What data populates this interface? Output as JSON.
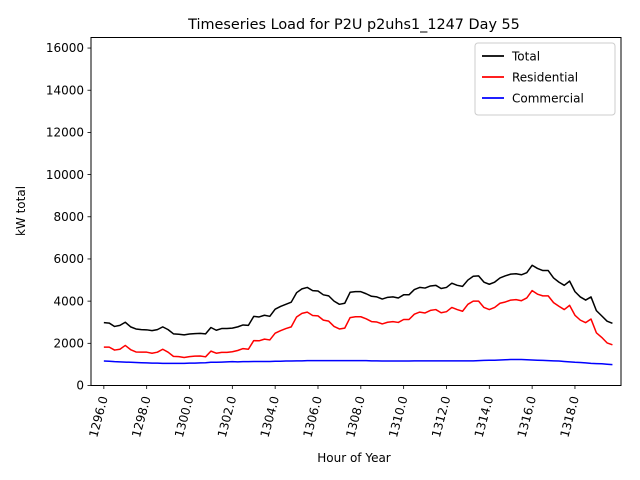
{
  "chart_data": {
    "type": "line",
    "title": "Timeseries Load for P2U p2uhs1_1247  Day 55",
    "xlabel": "Hour of Year",
    "ylabel": "kW total",
    "xlim": [
      1295.4,
      1320.15
    ],
    "ylim": [
      0,
      16500
    ],
    "x_ticks": [
      1296,
      1298,
      1300,
      1302,
      1304,
      1306,
      1308,
      1310,
      1312,
      1314,
      1316,
      1318
    ],
    "x_tick_labels": [
      "1296.0",
      "1298.0",
      "1300.0",
      "1302.0",
      "1304.0",
      "1306.0",
      "1308.0",
      "1310.0",
      "1312.0",
      "1314.0",
      "1316.0",
      "1318.0"
    ],
    "y_ticks": [
      0,
      2000,
      4000,
      6000,
      8000,
      10000,
      12000,
      14000,
      16000
    ],
    "y_tick_labels": [
      "0",
      "2000",
      "4000",
      "6000",
      "8000",
      "10000",
      "12000",
      "14000",
      "16000"
    ],
    "grid": false,
    "legend_position": "top-right",
    "x_start": 1296,
    "x_step": 0.25,
    "series": [
      {
        "name": "Total",
        "color": "#000000",
        "values": [
          2980,
          2960,
          2800,
          2850,
          3000,
          2780,
          2680,
          2650,
          2640,
          2600,
          2650,
          2780,
          2650,
          2450,
          2430,
          2400,
          2440,
          2460,
          2470,
          2450,
          2750,
          2620,
          2700,
          2700,
          2720,
          2780,
          2870,
          2850,
          3280,
          3250,
          3330,
          3280,
          3620,
          3750,
          3850,
          3950,
          4400,
          4580,
          4650,
          4500,
          4480,
          4300,
          4250,
          4000,
          3850,
          3900,
          4420,
          4450,
          4450,
          4350,
          4230,
          4200,
          4100,
          4180,
          4200,
          4150,
          4300,
          4300,
          4550,
          4650,
          4620,
          4720,
          4750,
          4600,
          4650,
          4850,
          4750,
          4700,
          5000,
          5180,
          5200,
          4900,
          4800,
          4900,
          5100,
          5200,
          5280,
          5300,
          5250,
          5350,
          5700,
          5550,
          5450,
          5450,
          5100,
          4900,
          4750,
          4950,
          4450,
          4200,
          4050,
          4200,
          3550,
          3300,
          3050,
          2950
        ]
      },
      {
        "name": "Residential",
        "color": "#ff0000",
        "values": [
          1820,
          1820,
          1680,
          1720,
          1900,
          1700,
          1590,
          1580,
          1580,
          1530,
          1580,
          1720,
          1580,
          1380,
          1370,
          1330,
          1370,
          1390,
          1400,
          1360,
          1630,
          1530,
          1570,
          1570,
          1600,
          1660,
          1750,
          1720,
          2130,
          2120,
          2200,
          2160,
          2480,
          2600,
          2700,
          2780,
          3250,
          3420,
          3480,
          3320,
          3300,
          3100,
          3050,
          2800,
          2680,
          2720,
          3220,
          3260,
          3260,
          3160,
          3030,
          3010,
          2920,
          3000,
          3030,
          2990,
          3130,
          3130,
          3380,
          3480,
          3440,
          3560,
          3600,
          3450,
          3500,
          3700,
          3600,
          3520,
          3850,
          4000,
          4000,
          3700,
          3600,
          3700,
          3900,
          3960,
          4050,
          4070,
          4020,
          4150,
          4500,
          4330,
          4250,
          4250,
          3930,
          3760,
          3600,
          3800,
          3330,
          3100,
          2980,
          3150,
          2500,
          2280,
          2020,
          1930
        ]
      },
      {
        "name": "Commercial",
        "color": "#0000ff",
        "values": [
          1160,
          1150,
          1130,
          1120,
          1110,
          1100,
          1090,
          1080,
          1070,
          1060,
          1060,
          1050,
          1050,
          1050,
          1050,
          1050,
          1060,
          1060,
          1070,
          1080,
          1100,
          1100,
          1110,
          1120,
          1130,
          1120,
          1130,
          1130,
          1140,
          1140,
          1140,
          1140,
          1150,
          1150,
          1160,
          1160,
          1170,
          1170,
          1180,
          1180,
          1180,
          1180,
          1180,
          1180,
          1180,
          1180,
          1180,
          1180,
          1180,
          1180,
          1170,
          1170,
          1160,
          1160,
          1160,
          1160,
          1160,
          1160,
          1170,
          1170,
          1170,
          1170,
          1170,
          1170,
          1170,
          1170,
          1170,
          1170,
          1170,
          1170,
          1180,
          1190,
          1200,
          1200,
          1210,
          1220,
          1230,
          1230,
          1230,
          1220,
          1210,
          1200,
          1190,
          1180,
          1170,
          1160,
          1140,
          1120,
          1100,
          1090,
          1070,
          1050,
          1040,
          1030,
          1010,
          990
        ]
      }
    ]
  }
}
